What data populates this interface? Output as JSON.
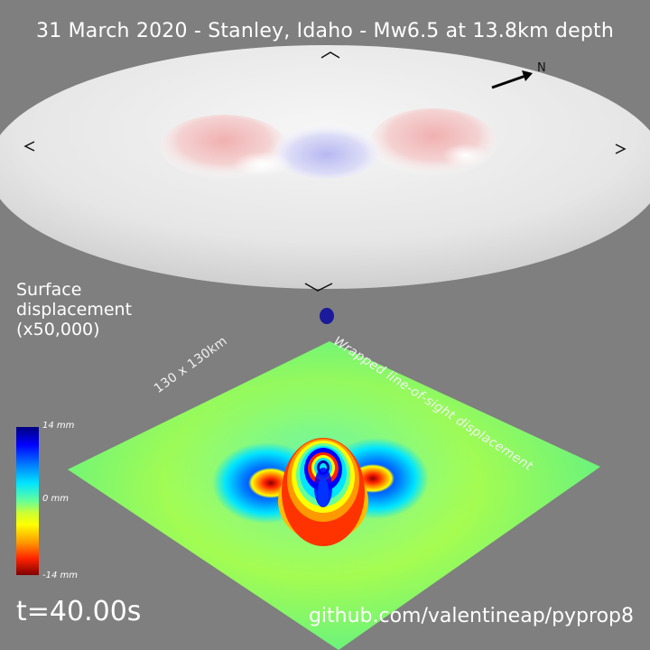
{
  "title": "31 March 2020 - Stanley, Idaho - Mw6.5 at 13.8km depth",
  "surface_label": [
    "Surface",
    "displacement",
    "(x50,000)"
  ],
  "north_label": "N",
  "grid_size_label": "130 x 130km",
  "los_label": "Wrapped line-of-sight displacement",
  "colorbar": {
    "max_label": "14 mm",
    "mid_label": "0 mm",
    "min_label": "-14 mm",
    "colors": [
      "#00007f",
      "#0000ff",
      "#00e5ff",
      "#66ff99",
      "#ffff00",
      "#ff9900",
      "#ff2200",
      "#7f0000"
    ]
  },
  "time_label": "t=40.00s",
  "credit": "github.com/valentineap/pyprop8",
  "colors": {
    "background": "#7f7f7f",
    "uplift": "#f2b5b5",
    "subsidence": "#c8c8f5",
    "field_base": "#7cf06a"
  }
}
